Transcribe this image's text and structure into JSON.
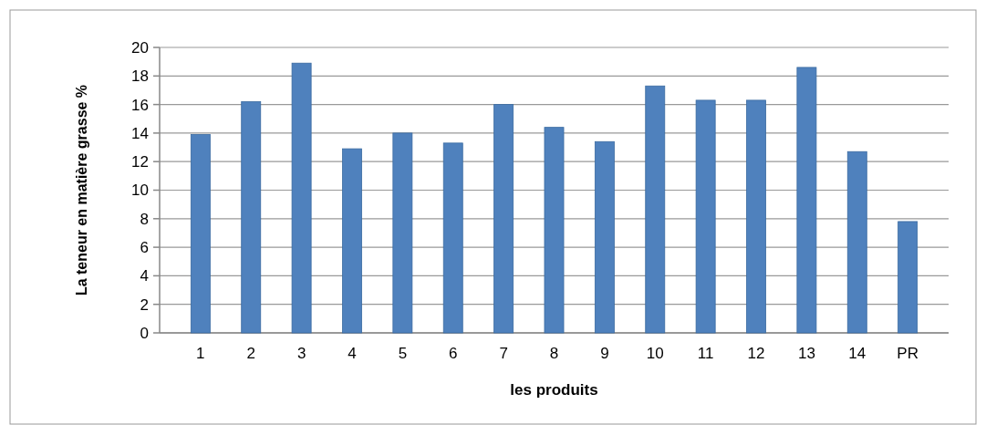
{
  "chart_data": {
    "type": "bar",
    "xlabel": "les produits",
    "ylabel": "La teneur  en  matière grasse %",
    "categories": [
      "1",
      "2",
      "3",
      "4",
      "5",
      "6",
      "7",
      "8",
      "9",
      "10",
      "11",
      "12",
      "13",
      "14",
      "PR"
    ],
    "values": [
      13.9,
      16.2,
      18.9,
      12.9,
      14.0,
      13.3,
      16.0,
      14.4,
      13.4,
      17.3,
      16.3,
      16.3,
      18.6,
      12.7,
      7.8
    ],
    "color": "#4f81bd",
    "ylim": [
      0,
      20
    ],
    "yticks": [
      0,
      2,
      4,
      6,
      8,
      10,
      12,
      14,
      16,
      18,
      20
    ],
    "grid": "y"
  }
}
